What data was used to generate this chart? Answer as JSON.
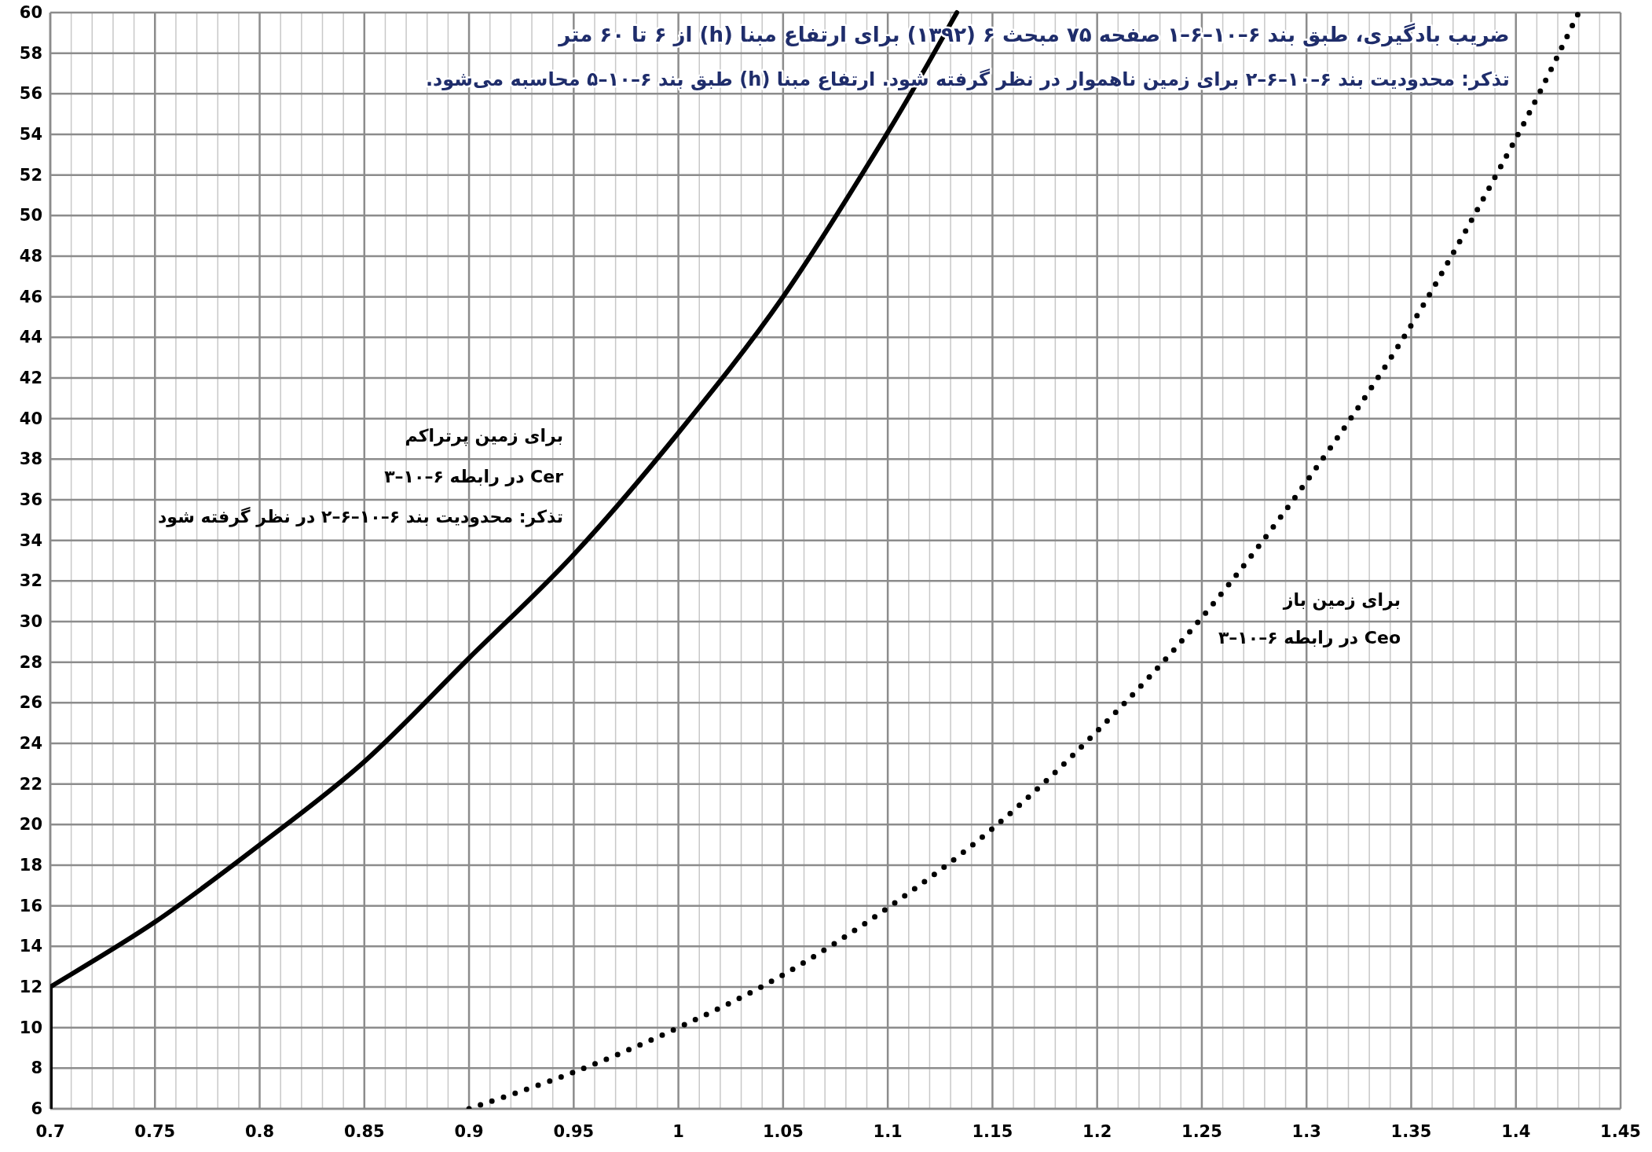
{
  "chart_data": {
    "type": "line",
    "title": "ضریب بادگیری، طبق بند ۶–۱۰–۶–۱ صفحه ۷۵ مبحث ۶ (۱۳۹۲) برای ارتفاع مبنا (h) از ۶ تا ۶۰ متر",
    "subtitle": "تذکر: محدودیت بند ۶–۱۰–۶–۲ برای زمین ناهموار در نظر گرفته شود. ارتفاع مبنا (h) طبق بند ۶–۱۰–۵ محاسبه می‌شود.",
    "series": [
      {
        "color": "#000000",
        "line_style": "solid",
        "x": [
          0.7,
          0.7,
          0.75,
          0.8,
          0.85,
          0.9,
          0.95,
          1.0,
          1.05,
          1.1,
          1.133
        ],
        "values": [
          6,
          12,
          15.2,
          19,
          23.1,
          28.2,
          33.3,
          39.3,
          46,
          54.1,
          60
        ]
      },
      {
        "color": "#000000",
        "line_style": "dotted",
        "x": [
          0.9,
          0.95,
          1.0,
          1.05,
          1.1,
          1.15,
          1.2,
          1.25,
          1.3,
          1.35,
          1.4,
          1.43
        ],
        "values": [
          6,
          7.8,
          10,
          12.6,
          15.9,
          19.8,
          24.6,
          30.2,
          36.9,
          44.6,
          53.8,
          60
        ]
      }
    ],
    "annotations": [
      "برای زمین پرتراکم",
      "Cer در رابطه ۶–۱۰–۳",
      "تذکر: محدودیت بند ۶–۱۰–۶–۲ در نظر گرفته شود",
      "برای زمین باز",
      "Ceo در رابطه ۶–۱۰–۳"
    ],
    "xlim": [
      0.7,
      1.45
    ],
    "ylim": [
      6,
      60
    ],
    "xticks": [
      0.7,
      {
        "value": 0.71,
        "label": null
      },
      {
        "value": 0.72,
        "label": null
      },
      {
        "value": 0.73,
        "label": null
      },
      {
        "value": 0.74,
        "label": null
      },
      0.75,
      {
        "value": 0.76,
        "label": null
      },
      {
        "value": 0.77,
        "label": null
      },
      {
        "value": 0.78,
        "label": null
      },
      {
        "value": 0.79,
        "label": null
      },
      0.8,
      {
        "value": 0.81,
        "label": null
      },
      {
        "value": 0.82,
        "label": null
      },
      {
        "value": 0.83,
        "label": null
      },
      {
        "value": 0.84,
        "label": null
      },
      0.85,
      {
        "value": 0.86,
        "label": null
      },
      {
        "value": 0.87,
        "label": null
      },
      {
        "value": 0.88,
        "label": null
      },
      {
        "value": 0.89,
        "label": null
      },
      0.9,
      {
        "value": 0.91,
        "label": null
      },
      {
        "value": 0.92,
        "label": null
      },
      {
        "value": 0.93,
        "label": null
      },
      {
        "value": 0.94,
        "label": null
      },
      0.95,
      {
        "value": 0.96,
        "label": null
      },
      {
        "value": 0.97,
        "label": null
      },
      {
        "value": 0.98,
        "label": null
      },
      {
        "value": 0.99,
        "label": null
      },
      1,
      {
        "value": 1.01,
        "label": null
      },
      {
        "value": 1.02,
        "label": null
      },
      {
        "value": 1.03,
        "label": null
      },
      {
        "value": 1.04,
        "label": null
      },
      1.05,
      {
        "value": 1.06,
        "label": null
      },
      {
        "value": 1.07,
        "label": null
      },
      {
        "value": 1.08,
        "label": null
      },
      {
        "value": 1.09,
        "label": null
      },
      1.1,
      {
        "value": 1.11,
        "label": null
      },
      {
        "value": 1.12,
        "label": null
      },
      {
        "value": 1.13,
        "label": null
      },
      {
        "value": 1.14,
        "label": null
      },
      1.15,
      {
        "value": 1.16,
        "label": null
      },
      {
        "value": 1.17,
        "label": null
      },
      {
        "value": 1.18,
        "label": null
      },
      {
        "value": 1.19,
        "label": null
      },
      1.2,
      {
        "value": 1.21,
        "label": null
      },
      {
        "value": 1.22,
        "label": null
      },
      {
        "value": 1.23,
        "label": null
      },
      {
        "value": 1.24,
        "label": null
      },
      1.25,
      {
        "value": 1.26,
        "label": null
      },
      {
        "value": 1.27,
        "label": null
      },
      {
        "value": 1.28,
        "label": null
      },
      {
        "value": 1.29,
        "label": null
      },
      1.3,
      {
        "value": 1.31,
        "label": null
      },
      {
        "value": 1.32,
        "label": null
      },
      {
        "value": 1.33,
        "label": null
      },
      {
        "value": 1.34,
        "label": null
      },
      1.35,
      {
        "value": 1.36,
        "label": null
      },
      {
        "value": 1.37,
        "label": null
      },
      {
        "value": 1.38,
        "label": null
      },
      {
        "value": 1.39,
        "label": null
      },
      1.4,
      {
        "value": 1.41,
        "label": null
      },
      {
        "value": 1.42,
        "label": null
      },
      {
        "value": 1.43,
        "label": null
      },
      {
        "value": 1.44,
        "label": null
      },
      1.45
    ],
    "yticks": [
      6,
      8,
      10,
      12,
      14,
      16,
      18,
      20,
      22,
      24,
      26,
      28,
      30,
      32,
      34,
      36,
      38,
      40,
      42,
      44,
      46,
      48,
      50,
      52,
      54,
      56,
      58,
      60
    ],
    "grid": true
  }
}
